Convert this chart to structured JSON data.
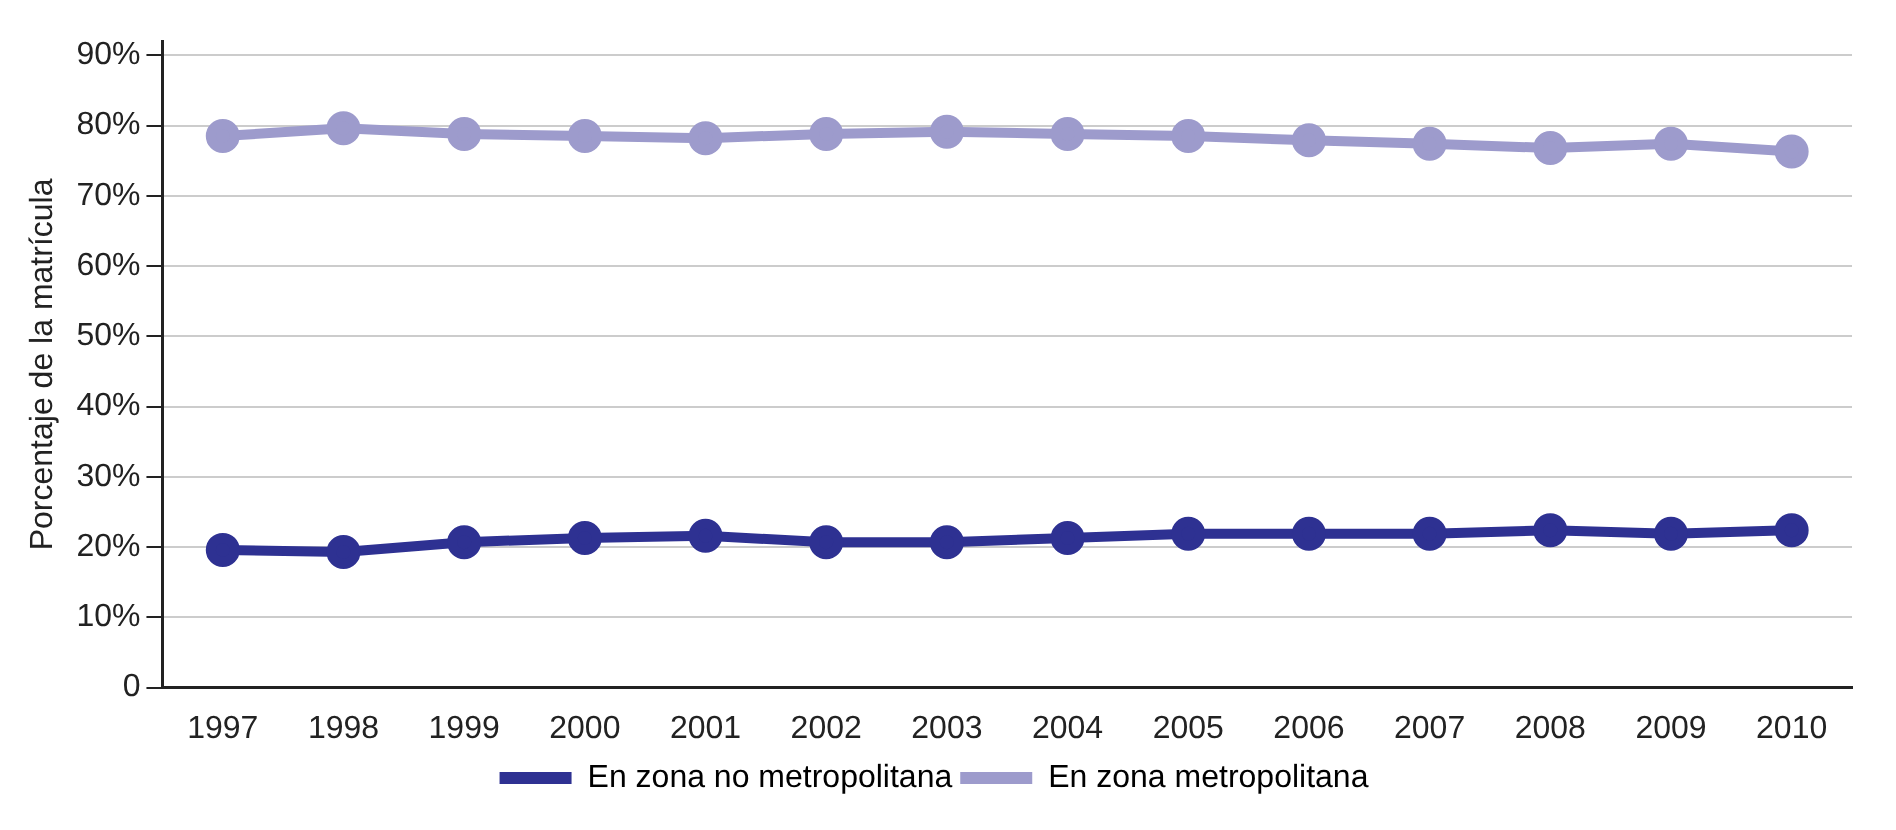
{
  "chart_data": {
    "type": "line",
    "ylabel": "Porcentaje de la matrícula",
    "categories": [
      "1997",
      "1998",
      "1999",
      "2000",
      "2001",
      "2002",
      "2003",
      "2004",
      "2005",
      "2006",
      "2007",
      "2008",
      "2009",
      "2010"
    ],
    "series": [
      {
        "name": "En zona no metropolitana",
        "color": "#2e3192",
        "values": [
          19.6,
          19.3,
          20.7,
          21.3,
          21.6,
          20.7,
          20.7,
          21.3,
          21.9,
          21.9,
          21.9,
          22.4,
          21.9,
          22.4
        ]
      },
      {
        "name": "En zona metropolitana",
        "color": "#9d9bcc",
        "values": [
          78.5,
          79.6,
          78.8,
          78.5,
          78.2,
          78.8,
          79.1,
          78.8,
          78.5,
          77.9,
          77.4,
          76.8,
          77.4,
          76.3
        ]
      }
    ],
    "ylim": [
      0,
      92
    ],
    "yticks": [
      {
        "value": 0,
        "label": "0"
      },
      {
        "value": 10,
        "label": "10%"
      },
      {
        "value": 20,
        "label": "20%"
      },
      {
        "value": 30,
        "label": "30%"
      },
      {
        "value": 40,
        "label": "40%"
      },
      {
        "value": 50,
        "label": "50%"
      },
      {
        "value": 60,
        "label": "60%"
      },
      {
        "value": 70,
        "label": "70%"
      },
      {
        "value": 80,
        "label": "80%"
      },
      {
        "value": 90,
        "label": "90%"
      }
    ],
    "grid": "y",
    "legend": "bottom",
    "marker": "circle",
    "line_style": "solid"
  }
}
